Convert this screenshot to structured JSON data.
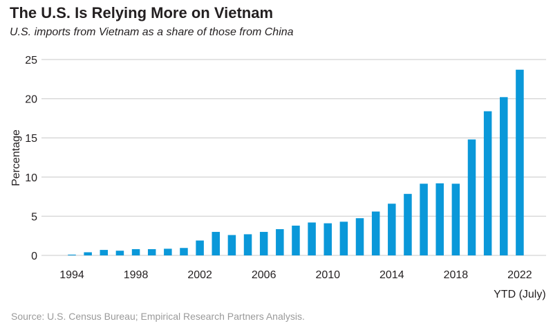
{
  "chart_data": {
    "type": "bar",
    "title": "The U.S. Is Relying More on Vietnam",
    "subtitle": "U.S. imports from Vietnam as a share of those from China",
    "xlabel": "",
    "ylabel": "Percentage",
    "ylim": [
      0,
      25
    ],
    "yticks": [
      0,
      5,
      10,
      15,
      20,
      25
    ],
    "grid": "horizontal",
    "bar_color": "#0a98d9",
    "categories": [
      "1994",
      "1995",
      "1996",
      "1997",
      "1998",
      "1999",
      "2000",
      "2001",
      "2002",
      "2003",
      "2004",
      "2005",
      "2006",
      "2007",
      "2008",
      "2009",
      "2010",
      "2011",
      "2012",
      "2013",
      "2014",
      "2015",
      "2016",
      "2017",
      "2018",
      "2019",
      "2020",
      "2021",
      "2022"
    ],
    "xtick_labels": [
      "1994",
      "1998",
      "2002",
      "2006",
      "2010",
      "2014",
      "2018",
      "2022"
    ],
    "xtick_note": "YTD (July)",
    "values": [
      0.1,
      0.4,
      0.7,
      0.6,
      0.8,
      0.8,
      0.85,
      0.95,
      1.9,
      3.0,
      2.6,
      2.7,
      3.0,
      3.35,
      3.8,
      4.2,
      4.1,
      4.3,
      4.75,
      5.6,
      6.6,
      7.85,
      9.15,
      9.2,
      9.15,
      14.8,
      18.4,
      20.2,
      23.7
    ],
    "source": "Source: U.S. Census Bureau; Empirical Research Partners Analysis."
  }
}
